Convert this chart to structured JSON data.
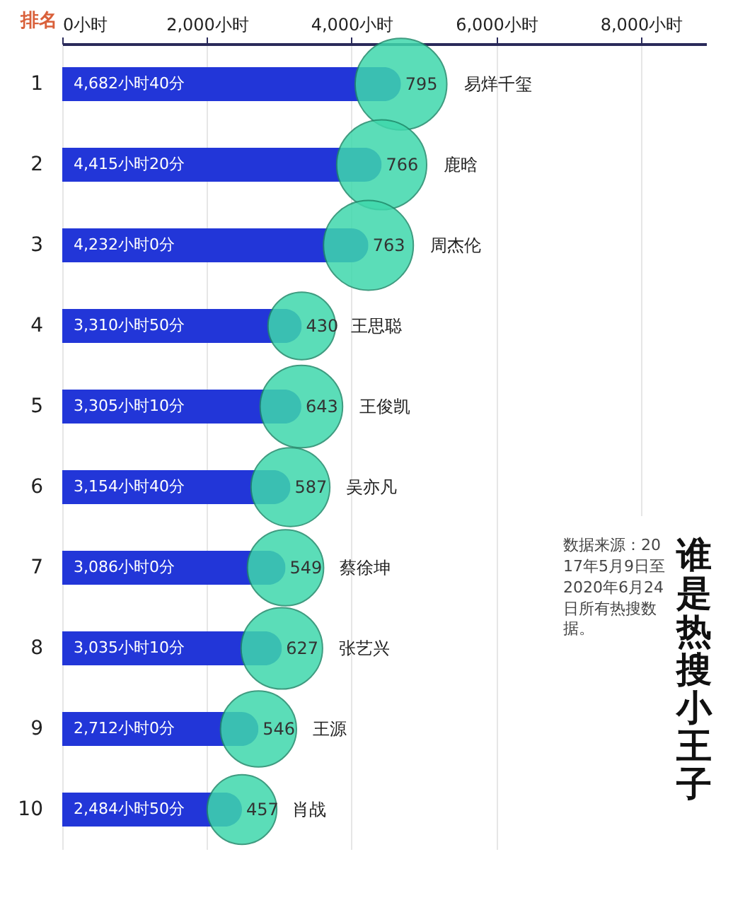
{
  "chart_data": {
    "type": "bar",
    "orientation": "horizontal",
    "title": "谁是热搜小王子",
    "ylabel": "排名",
    "categories": [
      "1",
      "2",
      "3",
      "4",
      "5",
      "6",
      "7",
      "8",
      "9",
      "10"
    ],
    "xlim": [
      0,
      8900
    ],
    "xticks": [
      {
        "value": 0,
        "label": "0小时"
      },
      {
        "value": 2000,
        "label": "2,000小时"
      },
      {
        "value": 4000,
        "label": "4,000小时"
      },
      {
        "value": 6000,
        "label": "6,000小时"
      },
      {
        "value": 8000,
        "label": "8,000小时"
      }
    ],
    "grid": "x",
    "series": [
      {
        "type": "bar",
        "color": "#2236d8",
        "values": [
          4682,
          4415,
          4232,
          3310,
          3305,
          3154,
          3086,
          3035,
          2712,
          2484
        ],
        "value_labels": [
          "4,682小时40分",
          "4,415小时20分",
          "4,232小时0分",
          "3,310小时50分",
          "3,305小时10分",
          "3,154小时40分",
          "3,086小时0分",
          "3,035小时10分",
          "2,712小时0分",
          "2,484小时50分"
        ]
      },
      {
        "type": "bubble",
        "color": "#3fd8ac",
        "values": [
          4682,
          4415,
          4232,
          3310,
          3305,
          3154,
          3086,
          3035,
          2712,
          2484
        ],
        "sizes": [
          795,
          766,
          763,
          430,
          643,
          587,
          549,
          627,
          546,
          457
        ],
        "value_labels": [
          "795",
          "766",
          "763",
          "430",
          "643",
          "587",
          "549",
          "627",
          "546",
          "457"
        ]
      }
    ],
    "annotations": [
      "易烊千玺",
      "鹿晗",
      "周杰伦",
      "王思聪",
      "王俊凯",
      "吴亦凡",
      "蔡徐坤",
      "张艺兴",
      "王源",
      "肖战",
      "数据来源：2017年5月9日至2020年6月24日所有热搜数据。"
    ]
  }
}
